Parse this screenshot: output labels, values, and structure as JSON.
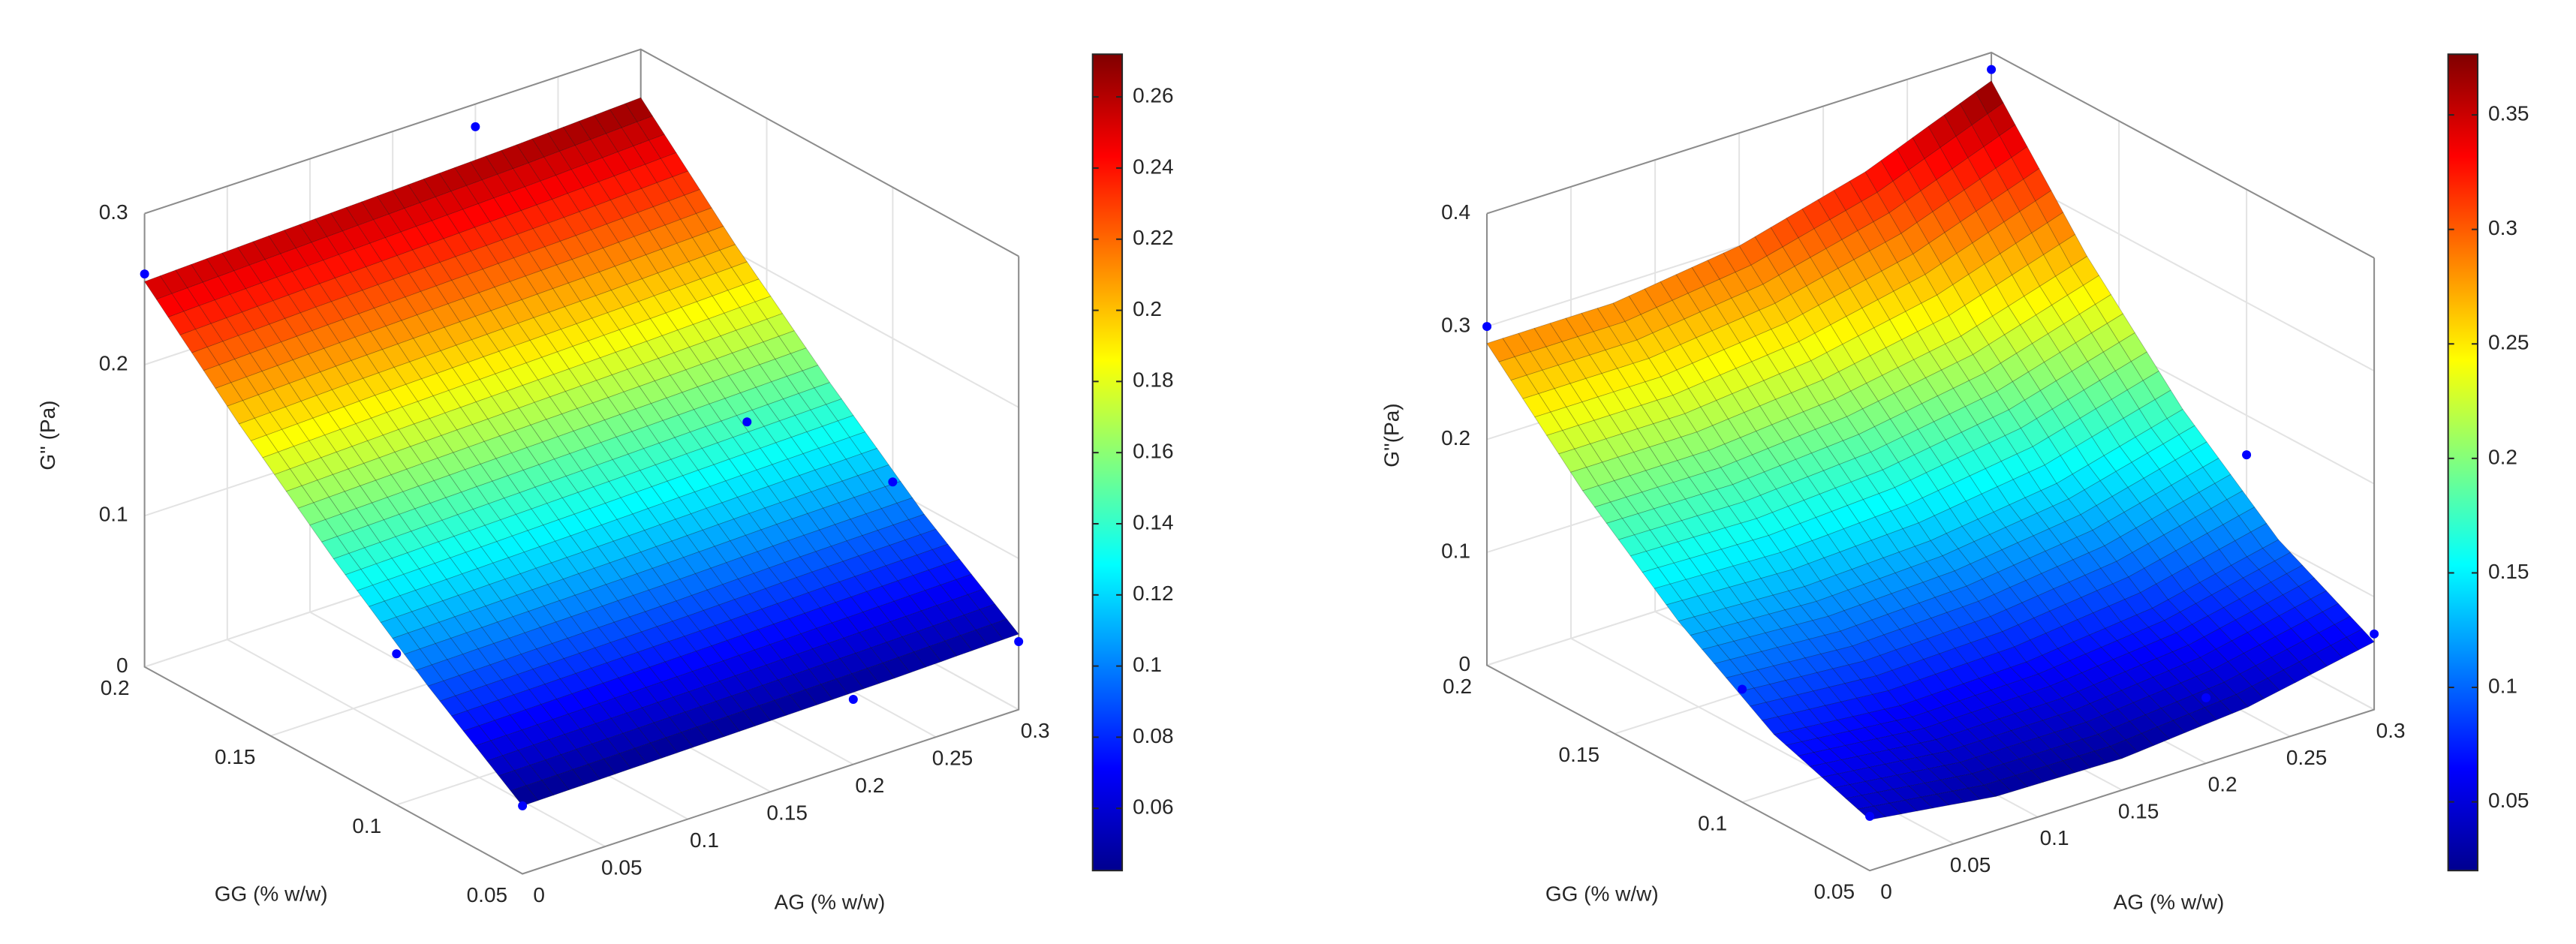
{
  "chart_data": [
    {
      "type": "surface",
      "xlabel": "AG (% w/w)",
      "ylabel": "GG (% w/w)",
      "zlabel": "G'' (Pa)",
      "x": [
        0,
        0.075,
        0.15,
        0.225,
        0.3
      ],
      "y": [
        0.05,
        0.0875,
        0.125,
        0.1625,
        0.2
      ],
      "z": [
        [
          0.045,
          0.09,
          0.14,
          0.195,
          0.255
        ],
        [
          0.046,
          0.091,
          0.142,
          0.198,
          0.258
        ],
        [
          0.047,
          0.092,
          0.144,
          0.2,
          0.261
        ],
        [
          0.048,
          0.094,
          0.146,
          0.202,
          0.264
        ],
        [
          0.05,
          0.095,
          0.148,
          0.205,
          0.268
        ]
      ],
      "xlim": [
        0,
        0.3
      ],
      "xticks": [
        0,
        0.05,
        0.1,
        0.15,
        0.2,
        0.25,
        0.3
      ],
      "ylim": [
        0.05,
        0.2
      ],
      "yticks": [
        0.05,
        0.1,
        0.15,
        0.2
      ],
      "zlim": [
        0,
        0.3
      ],
      "zticks": [
        0,
        0.1,
        0.2,
        0.3
      ],
      "points": {
        "color": "#0000ff",
        "x": [
          0,
          0.2,
          0,
          0.25,
          0.3,
          0.2,
          0,
          0.3
        ],
        "y": [
          0.2,
          0.2,
          0.1,
          0.125,
          0.1,
          0.05,
          0.05,
          0.05
        ],
        "z": [
          0.26,
          0.285,
          0.1,
          0.14,
          0.105,
          0.043,
          0.045,
          0.045
        ]
      },
      "colormap": "jet",
      "clim": [
        0.0425,
        0.272
      ],
      "cticks": [
        0.06,
        0.08,
        0.1,
        0.12,
        0.14,
        0.16,
        0.18,
        0.2,
        0.22,
        0.24,
        0.26
      ],
      "grid": true
    },
    {
      "type": "surface",
      "xlabel": "AG (% w/w)",
      "ylabel": "GG (% w/w)",
      "zlabel": "G''(Pa)",
      "x": [
        0,
        0.075,
        0.15,
        0.225,
        0.3
      ],
      "y": [
        0.05,
        0.0875,
        0.125,
        0.1625,
        0.2
      ],
      "z": [
        [
          0.045,
          0.075,
          0.13,
          0.2,
          0.285
        ],
        [
          0.03,
          0.065,
          0.125,
          0.2,
          0.285
        ],
        [
          0.028,
          0.068,
          0.13,
          0.21,
          0.3
        ],
        [
          0.038,
          0.08,
          0.145,
          0.23,
          0.33
        ],
        [
          0.06,
          0.105,
          0.175,
          0.265,
          0.375
        ]
      ],
      "xlim": [
        0,
        0.3
      ],
      "xticks": [
        0,
        0.05,
        0.1,
        0.15,
        0.2,
        0.25,
        0.3
      ],
      "ylim": [
        0.05,
        0.2
      ],
      "yticks": [
        0.05,
        0.1,
        0.15,
        0.2
      ],
      "zlim": [
        0,
        0.4
      ],
      "zticks": [
        0,
        0.1,
        0.2,
        0.3,
        0.4
      ],
      "points": {
        "color": "#0000ff",
        "x": [
          0,
          0.3,
          0,
          0.3,
          0,
          0.3,
          0.2
        ],
        "y": [
          0.2,
          0.2,
          0.1,
          0.1,
          0.05,
          0.05,
          0.05
        ],
        "z": [
          0.3,
          0.385,
          0.1,
          0.165,
          0.048,
          0.067,
          0.058
        ]
      },
      "colormap": "jet",
      "clim": [
        0.02,
        0.3765
      ],
      "cticks": [
        0.05,
        0.1,
        0.15,
        0.2,
        0.25,
        0.3,
        0.35
      ],
      "grid": true
    }
  ]
}
